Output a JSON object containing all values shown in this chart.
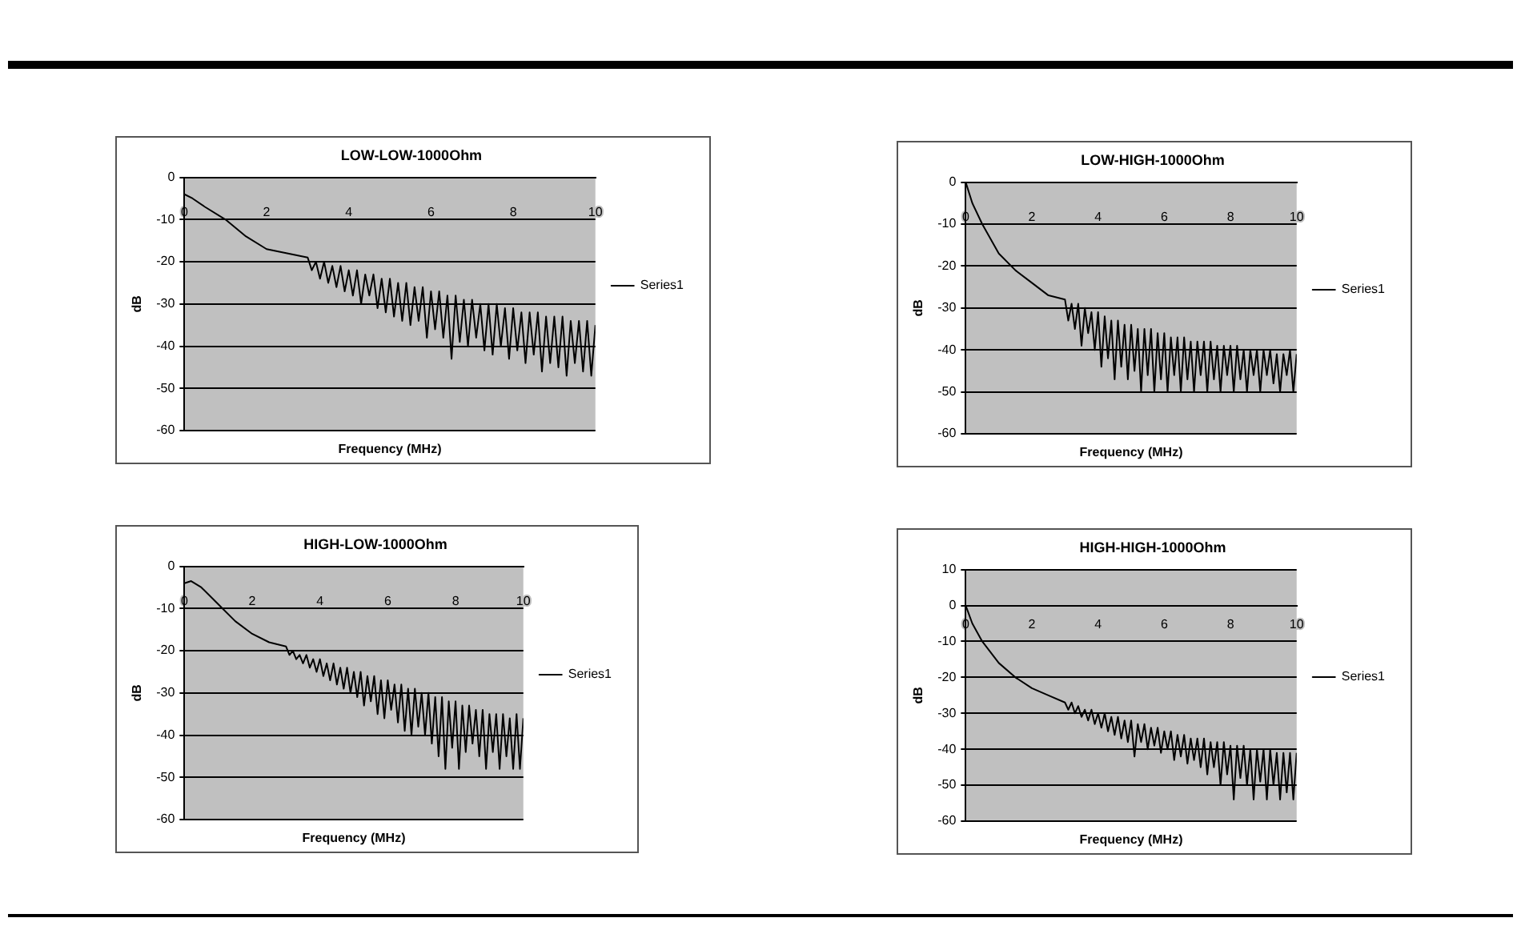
{
  "chart_data": [
    {
      "type": "line",
      "title": "LOW-LOW-1000Ohm",
      "xlabel": "Frequency (MHz)",
      "ylabel": "dB",
      "xlim": [
        0,
        10
      ],
      "xticks": [
        0,
        2,
        4,
        6,
        8,
        10
      ],
      "ylim": [
        -60,
        0
      ],
      "yticks": [
        -60,
        -50,
        -40,
        -30,
        -20,
        -10,
        0
      ],
      "grid": "y",
      "legend": "right",
      "marker": "none",
      "x": [
        0,
        0.2,
        0.5,
        1,
        1.5,
        2,
        2.5,
        3,
        3.1,
        3.2,
        3.3,
        3.4,
        3.5,
        3.6,
        3.7,
        3.8,
        3.9,
        4,
        4.1,
        4.2,
        4.3,
        4.4,
        4.5,
        4.6,
        4.7,
        4.8,
        4.9,
        5,
        5.1,
        5.2,
        5.3,
        5.4,
        5.5,
        5.6,
        5.7,
        5.8,
        5.9,
        6,
        6.1,
        6.2,
        6.3,
        6.4,
        6.5,
        6.6,
        6.7,
        6.8,
        6.9,
        7,
        7.1,
        7.2,
        7.3,
        7.4,
        7.5,
        7.6,
        7.7,
        7.8,
        7.9,
        8,
        8.1,
        8.2,
        8.3,
        8.4,
        8.5,
        8.6,
        8.7,
        8.8,
        8.9,
        9,
        9.1,
        9.2,
        9.3,
        9.4,
        9.5,
        9.6,
        9.7,
        9.8,
        9.9,
        10
      ],
      "series": [
        {
          "name": "Series1",
          "color": "#000000",
          "values": [
            -4,
            -5,
            -7,
            -10,
            -14,
            -17,
            -18,
            -19,
            -22,
            -20,
            -24,
            -20,
            -25,
            -21,
            -26,
            -21,
            -27,
            -22,
            -28,
            -22,
            -30,
            -23,
            -28,
            -23,
            -31,
            -24,
            -32,
            -24,
            -33,
            -25,
            -34,
            -25,
            -35,
            -26,
            -34,
            -26,
            -38,
            -27,
            -36,
            -27,
            -38,
            -28,
            -43,
            -28,
            -39,
            -29,
            -40,
            -29,
            -38,
            -30,
            -41,
            -30,
            -42,
            -30,
            -40,
            -31,
            -43,
            -31,
            -41,
            -32,
            -44,
            -32,
            -42,
            -32,
            -46,
            -33,
            -44,
            -33,
            -45,
            -33,
            -47,
            -34,
            -44,
            -34,
            -46,
            -34,
            -47,
            -35
          ]
        }
      ]
    },
    {
      "type": "line",
      "title": "LOW-HIGH-1000Ohm",
      "xlabel": "Frequency (MHz)",
      "ylabel": "dB",
      "xlim": [
        0,
        10
      ],
      "xticks": [
        0,
        2,
        4,
        6,
        8,
        10
      ],
      "ylim": [
        -60,
        0
      ],
      "yticks": [
        -60,
        -50,
        -40,
        -30,
        -20,
        -10,
        0
      ],
      "grid": "y",
      "legend": "right",
      "marker": "none",
      "x": [
        0,
        0.2,
        0.5,
        1,
        1.5,
        2,
        2.5,
        3,
        3.1,
        3.2,
        3.3,
        3.4,
        3.5,
        3.6,
        3.7,
        3.8,
        3.9,
        4,
        4.1,
        4.2,
        4.3,
        4.4,
        4.5,
        4.6,
        4.7,
        4.8,
        4.9,
        5,
        5.1,
        5.2,
        5.3,
        5.4,
        5.5,
        5.6,
        5.7,
        5.8,
        5.9,
        6,
        6.1,
        6.2,
        6.3,
        6.4,
        6.5,
        6.6,
        6.7,
        6.8,
        6.9,
        7,
        7.1,
        7.2,
        7.3,
        7.4,
        7.5,
        7.6,
        7.7,
        7.8,
        7.9,
        8,
        8.1,
        8.2,
        8.3,
        8.4,
        8.5,
        8.6,
        8.7,
        8.8,
        8.9,
        9,
        9.1,
        9.2,
        9.3,
        9.4,
        9.5,
        9.6,
        9.7,
        9.8,
        9.9,
        10
      ],
      "series": [
        {
          "name": "Series1",
          "color": "#000000",
          "values": [
            0,
            -5,
            -10,
            -17,
            -21,
            -24,
            -27,
            -28,
            -33,
            -29,
            -35,
            -29,
            -39,
            -30,
            -36,
            -31,
            -40,
            -31,
            -44,
            -32,
            -42,
            -33,
            -47,
            -33,
            -44,
            -34,
            -47,
            -34,
            -45,
            -35,
            -50,
            -35,
            -46,
            -35,
            -50,
            -36,
            -47,
            -36,
            -50,
            -37,
            -46,
            -37,
            -50,
            -37,
            -47,
            -38,
            -50,
            -38,
            -46,
            -38,
            -50,
            -38,
            -47,
            -39,
            -50,
            -39,
            -46,
            -39,
            -50,
            -39,
            -47,
            -40,
            -50,
            -40,
            -46,
            -40,
            -50,
            -40,
            -46,
            -40,
            -48,
            -41,
            -50,
            -41,
            -46,
            -40,
            -50,
            -41
          ]
        }
      ]
    },
    {
      "type": "line",
      "title": "HIGH-LOW-1000Ohm",
      "xlabel": "Frequency (MHz)",
      "ylabel": "dB",
      "xlim": [
        0,
        10
      ],
      "xticks": [
        0,
        2,
        4,
        6,
        8,
        10
      ],
      "ylim": [
        -60,
        0
      ],
      "yticks": [
        -60,
        -50,
        -40,
        -30,
        -20,
        -10,
        0
      ],
      "grid": "y",
      "legend": "right",
      "marker": "none",
      "x": [
        0,
        0.2,
        0.5,
        1,
        1.5,
        2,
        2.5,
        3,
        3.1,
        3.2,
        3.3,
        3.4,
        3.5,
        3.6,
        3.7,
        3.8,
        3.9,
        4,
        4.1,
        4.2,
        4.3,
        4.4,
        4.5,
        4.6,
        4.7,
        4.8,
        4.9,
        5,
        5.1,
        5.2,
        5.3,
        5.4,
        5.5,
        5.6,
        5.7,
        5.8,
        5.9,
        6,
        6.1,
        6.2,
        6.3,
        6.4,
        6.5,
        6.6,
        6.7,
        6.8,
        6.9,
        7,
        7.1,
        7.2,
        7.3,
        7.4,
        7.5,
        7.6,
        7.7,
        7.8,
        7.9,
        8,
        8.1,
        8.2,
        8.3,
        8.4,
        8.5,
        8.6,
        8.7,
        8.8,
        8.9,
        9,
        9.1,
        9.2,
        9.3,
        9.4,
        9.5,
        9.6,
        9.7,
        9.8,
        9.9,
        10
      ],
      "series": [
        {
          "name": "Series1",
          "color": "#000000",
          "values": [
            -4,
            -3.5,
            -5,
            -9,
            -13,
            -16,
            -18,
            -19,
            -21,
            -20,
            -22,
            -21,
            -23,
            -21,
            -24,
            -22,
            -25,
            -22,
            -26,
            -23,
            -27,
            -23,
            -28,
            -24,
            -29,
            -24,
            -30,
            -25,
            -31,
            -25,
            -33,
            -26,
            -32,
            -26,
            -35,
            -27,
            -36,
            -27,
            -34,
            -28,
            -37,
            -28,
            -39,
            -29,
            -40,
            -29,
            -38,
            -30,
            -40,
            -30,
            -42,
            -31,
            -45,
            -31,
            -48,
            -32,
            -43,
            -32,
            -48,
            -33,
            -44,
            -33,
            -42,
            -34,
            -45,
            -34,
            -48,
            -35,
            -44,
            -35,
            -48,
            -35,
            -45,
            -36,
            -48,
            -35,
            -48,
            -36
          ]
        }
      ]
    },
    {
      "type": "line",
      "title": "HIGH-HIGH-1000Ohm",
      "xlabel": "Frequency (MHz)",
      "ylabel": "dB",
      "xlim": [
        0,
        10
      ],
      "xticks": [
        0,
        2,
        4,
        6,
        8,
        10
      ],
      "ylim": [
        -60,
        10
      ],
      "yticks": [
        -60,
        -50,
        -40,
        -30,
        -20,
        -10,
        0,
        10
      ],
      "grid": "y",
      "legend": "right",
      "marker": "none",
      "x": [
        0,
        0.2,
        0.5,
        1,
        1.5,
        2,
        2.5,
        3,
        3.1,
        3.2,
        3.3,
        3.4,
        3.5,
        3.6,
        3.7,
        3.8,
        3.9,
        4,
        4.1,
        4.2,
        4.3,
        4.4,
        4.5,
        4.6,
        4.7,
        4.8,
        4.9,
        5,
        5.1,
        5.2,
        5.3,
        5.4,
        5.5,
        5.6,
        5.7,
        5.8,
        5.9,
        6,
        6.1,
        6.2,
        6.3,
        6.4,
        6.5,
        6.6,
        6.7,
        6.8,
        6.9,
        7,
        7.1,
        7.2,
        7.3,
        7.4,
        7.5,
        7.6,
        7.7,
        7.8,
        7.9,
        8,
        8.1,
        8.2,
        8.3,
        8.4,
        8.5,
        8.6,
        8.7,
        8.8,
        8.9,
        9,
        9.1,
        9.2,
        9.3,
        9.4,
        9.5,
        9.6,
        9.7,
        9.8,
        9.9,
        10
      ],
      "series": [
        {
          "name": "Series1",
          "color": "#000000",
          "values": [
            0,
            -5,
            -10,
            -16,
            -20,
            -23,
            -25,
            -27,
            -29,
            -27,
            -30,
            -28,
            -31,
            -29,
            -32,
            -29,
            -33,
            -30,
            -34,
            -30,
            -35,
            -31,
            -36,
            -31,
            -37,
            -32,
            -38,
            -32,
            -42,
            -33,
            -38,
            -33,
            -40,
            -34,
            -39,
            -34,
            -41,
            -35,
            -40,
            -35,
            -43,
            -36,
            -42,
            -36,
            -44,
            -37,
            -43,
            -37,
            -45,
            -37,
            -47,
            -38,
            -45,
            -38,
            -50,
            -38,
            -47,
            -39,
            -54,
            -39,
            -48,
            -39,
            -50,
            -40,
            -54,
            -40,
            -49,
            -40,
            -54,
            -40,
            -50,
            -41,
            -54,
            -41,
            -52,
            -41,
            -54,
            -41
          ]
        }
      ]
    }
  ]
}
